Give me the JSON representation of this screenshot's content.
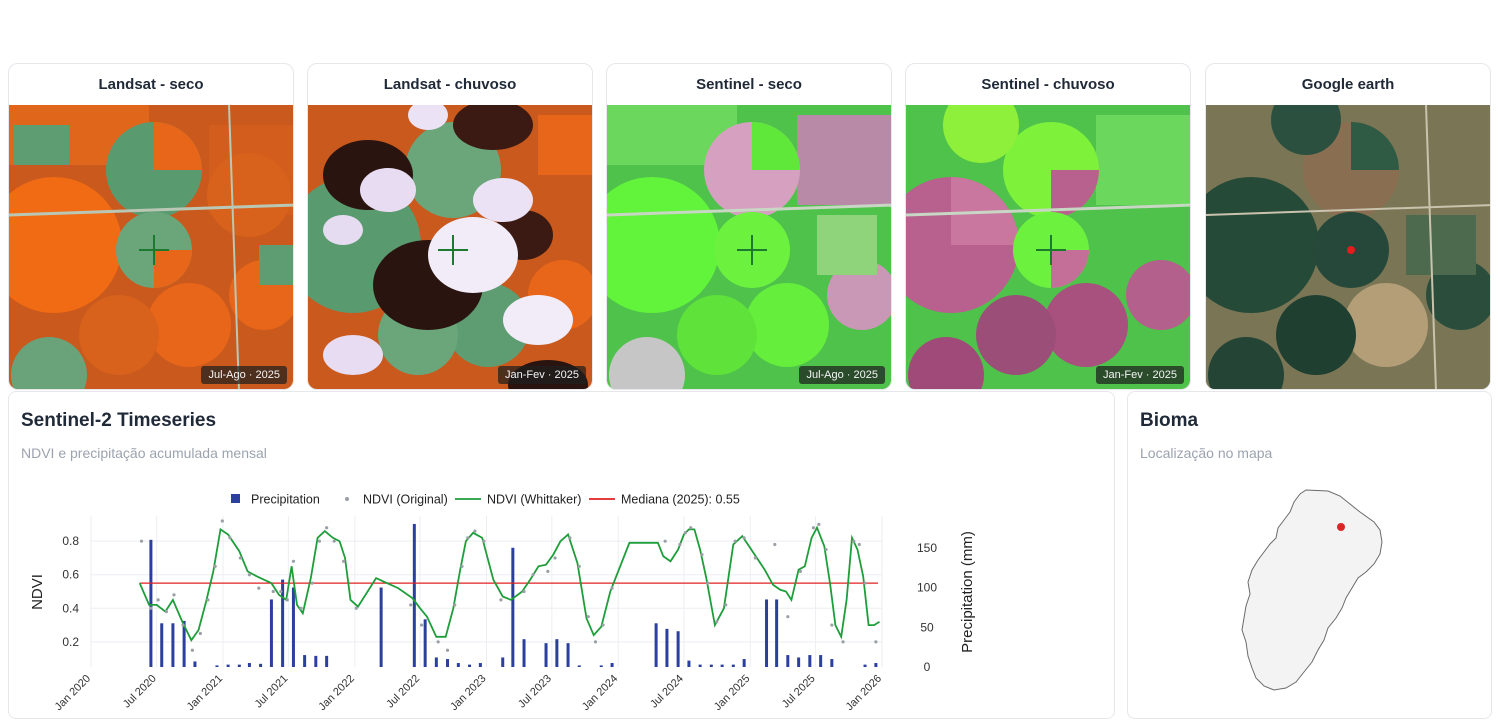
{
  "image_cards": [
    {
      "title": "Landsat - seco",
      "badge": "Jul-Ago · 2025"
    },
    {
      "title": "Landsat - chuvoso",
      "badge": "Jan-Fev · 2025"
    },
    {
      "title": "Sentinel - seco",
      "badge": "Jul-Ago · 2025"
    },
    {
      "title": "Sentinel - chuvoso",
      "badge": "Jan-Fev · 2025"
    },
    {
      "title": "Google earth",
      "badge": ""
    }
  ],
  "timeseries_panel": {
    "title": "Sentinel-2 Timeseries",
    "subtitle": "NDVI e precipitação acumulada mensal"
  },
  "bioma_panel": {
    "title": "Bioma",
    "subtitle": "Localização no mapa"
  },
  "colors": {
    "precip_bar": "#2b3f9e",
    "ndvi_original": "#9aa0a6",
    "ndvi_whittaker": "#1e9e3a",
    "median_line": "#e02020",
    "marker": "#dc2626"
  },
  "chart_data": {
    "type": "line",
    "legend": [
      "Precipitation",
      "NDVI (Original)",
      "NDVI (Whittaker)",
      "Mediana (2025): 0.55"
    ],
    "ylabel": "NDVI",
    "y2label": "Precipitation (mm)",
    "ylim": [
      0.05,
      0.95
    ],
    "y2lim": [
      0,
      190
    ],
    "y_ticks": [
      "0.2",
      "0.4",
      "0.6",
      "0.8"
    ],
    "y2_ticks": [
      "0",
      "50",
      "100",
      "150"
    ],
    "x_ticks": [
      "Jan 2020",
      "Jul 2020",
      "Jan 2021",
      "Jul 2021",
      "Jan 2022",
      "Jul 2022",
      "Jan 2023",
      "Jul 2023",
      "Jan 2024",
      "Jul 2024",
      "Jan 2025",
      "Jul 2025",
      "Jan 2026"
    ],
    "median": 0.55,
    "ndvi_whittaker": {
      "x": [
        "2020-05-15",
        "2020-06-10",
        "2020-07-01",
        "2020-07-25",
        "2020-08-15",
        "2020-09-10",
        "2020-10-05",
        "2020-10-25",
        "2020-11-15",
        "2020-12-05",
        "2020-12-25",
        "2021-01-15",
        "2021-02-15",
        "2021-03-10",
        "2021-04-05",
        "2021-04-25",
        "2021-05-15",
        "2021-06-05",
        "2021-06-25",
        "2021-07-10",
        "2021-07-25",
        "2021-08-10",
        "2021-09-01",
        "2021-09-20",
        "2021-10-10",
        "2021-11-01",
        "2021-11-20",
        "2021-12-05",
        "2021-12-20",
        "2022-01-10",
        "2022-03-01",
        "2022-05-01",
        "2022-06-10",
        "2022-07-01",
        "2022-07-20",
        "2022-08-15",
        "2022-09-10",
        "2022-10-01",
        "2022-10-20",
        "2022-11-05",
        "2022-11-25",
        "2022-12-20",
        "2023-01-20",
        "2023-02-15",
        "2023-03-10",
        "2023-04-10",
        "2023-05-05",
        "2023-05-25",
        "2023-06-15",
        "2023-07-05",
        "2023-07-25",
        "2023-08-15",
        "2023-09-10",
        "2023-10-05",
        "2023-10-25",
        "2023-11-15",
        "2023-12-10",
        "2024-02-01",
        "2024-04-20",
        "2024-05-05",
        "2024-05-25",
        "2024-06-15",
        "2024-07-01",
        "2024-07-15",
        "2024-07-30",
        "2024-08-15",
        "2024-09-01",
        "2024-09-25",
        "2024-10-20",
        "2024-11-15",
        "2024-12-10",
        "2025-01-10",
        "2025-02-10",
        "2025-03-05",
        "2025-03-25",
        "2025-04-10",
        "2025-04-25",
        "2025-05-15",
        "2025-06-01",
        "2025-06-20",
        "2025-07-05",
        "2025-07-25",
        "2025-08-10",
        "2025-08-25",
        "2025-09-10",
        "2025-09-25",
        "2025-10-10",
        "2025-10-25",
        "2025-11-10",
        "2025-11-25",
        "2025-12-10",
        "2025-12-25"
      ],
      "values": [
        0.55,
        0.42,
        0.42,
        0.38,
        0.45,
        0.32,
        0.21,
        0.27,
        0.44,
        0.62,
        0.87,
        0.84,
        0.74,
        0.62,
        0.59,
        0.57,
        0.55,
        0.48,
        0.45,
        0.65,
        0.42,
        0.37,
        0.58,
        0.82,
        0.86,
        0.82,
        0.8,
        0.7,
        0.45,
        0.41,
        0.58,
        0.52,
        0.46,
        0.4,
        0.35,
        0.23,
        0.23,
        0.4,
        0.63,
        0.8,
        0.85,
        0.82,
        0.57,
        0.47,
        0.45,
        0.5,
        0.58,
        0.65,
        0.66,
        0.72,
        0.8,
        0.84,
        0.67,
        0.34,
        0.24,
        0.29,
        0.5,
        0.79,
        0.79,
        0.71,
        0.68,
        0.75,
        0.84,
        0.87,
        0.87,
        0.75,
        0.58,
        0.3,
        0.4,
        0.78,
        0.83,
        0.73,
        0.63,
        0.54,
        0.51,
        0.5,
        0.45,
        0.63,
        0.65,
        0.82,
        0.88,
        0.77,
        0.55,
        0.3,
        0.23,
        0.45,
        0.82,
        0.75,
        0.59,
        0.3,
        0.3,
        0.32
      ]
    },
    "ndvi_original": {
      "x": [
        "2020-05-20",
        "2020-06-15",
        "2020-07-05",
        "2020-07-28",
        "2020-08-18",
        "2020-09-12",
        "2020-10-08",
        "2020-10-30",
        "2020-11-20",
        "2020-12-10",
        "2020-12-30",
        "2021-01-20",
        "2021-02-18",
        "2021-03-15",
        "2021-04-10",
        "2021-05-20",
        "2021-06-10",
        "2021-06-28",
        "2021-07-15",
        "2021-08-05",
        "2021-09-05",
        "2021-09-25",
        "2021-10-15",
        "2021-11-05",
        "2021-12-01",
        "2022-01-05",
        "2022-06-05",
        "2022-07-05",
        "2022-08-20",
        "2022-09-15",
        "2022-10-05",
        "2022-10-25",
        "2022-11-10",
        "2022-11-30",
        "2022-12-25",
        "2023-02-10",
        "2023-04-15",
        "2023-05-10",
        "2023-06-20",
        "2023-07-10",
        "2023-08-20",
        "2023-09-15",
        "2023-10-10",
        "2023-10-30",
        "2023-11-20",
        "2023-12-15",
        "2024-05-10",
        "2024-06-20",
        "2024-07-05",
        "2024-07-20",
        "2024-08-20",
        "2024-09-05",
        "2024-09-30",
        "2024-10-25",
        "2024-11-20",
        "2024-12-15",
        "2025-01-15",
        "2025-03-10",
        "2025-04-15",
        "2025-05-20",
        "2025-06-25",
        "2025-07-10",
        "2025-07-30",
        "2025-08-15",
        "2025-09-15",
        "2025-10-15",
        "2025-10-30",
        "2025-11-15",
        "2025-12-15"
      ],
      "values": [
        0.8,
        0.4,
        0.45,
        0.38,
        0.48,
        0.3,
        0.15,
        0.25,
        0.45,
        0.65,
        0.92,
        0.82,
        0.7,
        0.6,
        0.52,
        0.5,
        0.5,
        0.45,
        0.68,
        0.4,
        0.55,
        0.8,
        0.88,
        0.8,
        0.68,
        0.4,
        0.42,
        0.3,
        0.2,
        0.15,
        0.42,
        0.65,
        0.82,
        0.86,
        0.8,
        0.45,
        0.5,
        0.6,
        0.62,
        0.7,
        0.82,
        0.65,
        0.35,
        0.2,
        0.3,
        0.52,
        0.8,
        0.78,
        0.85,
        0.88,
        0.72,
        0.55,
        0.32,
        0.42,
        0.8,
        0.82,
        0.7,
        0.78,
        0.35,
        0.62,
        0.88,
        0.9,
        0.75,
        0.3,
        0.2,
        0.8,
        0.78,
        0.55,
        0.2
      ]
    },
    "precipitation": {
      "x": [
        "2020-06",
        "2020-07",
        "2020-08",
        "2020-09",
        "2020-10",
        "2020-11",
        "2020-12",
        "2021-01",
        "2021-02",
        "2021-03",
        "2021-04",
        "2021-05",
        "2021-06",
        "2021-07",
        "2021-08",
        "2021-09",
        "2021-10",
        "2021-11",
        "2021-12",
        "2022-01",
        "2022-02",
        "2022-03",
        "2022-04",
        "2022-05",
        "2022-06",
        "2022-07",
        "2022-08",
        "2022-09",
        "2022-10",
        "2022-11",
        "2022-12",
        "2023-01",
        "2023-02",
        "2023-03",
        "2023-04",
        "2023-05",
        "2023-06",
        "2023-07",
        "2023-08",
        "2023-09",
        "2023-10",
        "2023-11",
        "2023-12",
        "2024-01",
        "2024-02",
        "2024-03",
        "2024-04",
        "2024-05",
        "2024-06",
        "2024-07",
        "2024-08",
        "2024-09",
        "2024-10",
        "2024-11",
        "2024-12",
        "2025-01",
        "2025-02",
        "2025-03",
        "2025-04",
        "2025-05",
        "2025-06",
        "2025-07",
        "2025-08",
        "2025-09",
        "2025-10",
        "2025-11",
        "2025-12"
      ],
      "values": [
        160,
        55,
        55,
        58,
        7,
        0,
        2,
        3,
        3,
        5,
        4,
        85,
        110,
        100,
        15,
        14,
        14,
        0,
        0,
        0,
        0,
        100,
        0,
        0,
        180,
        60,
        12,
        10,
        5,
        3,
        5,
        0,
        12,
        150,
        35,
        0,
        30,
        35,
        30,
        2,
        0,
        2,
        5,
        0,
        0,
        0,
        55,
        48,
        45,
        8,
        3,
        3,
        3,
        3,
        10,
        0,
        85,
        85,
        15,
        12,
        15,
        15,
        10,
        0,
        0,
        3,
        5
      ]
    }
  }
}
